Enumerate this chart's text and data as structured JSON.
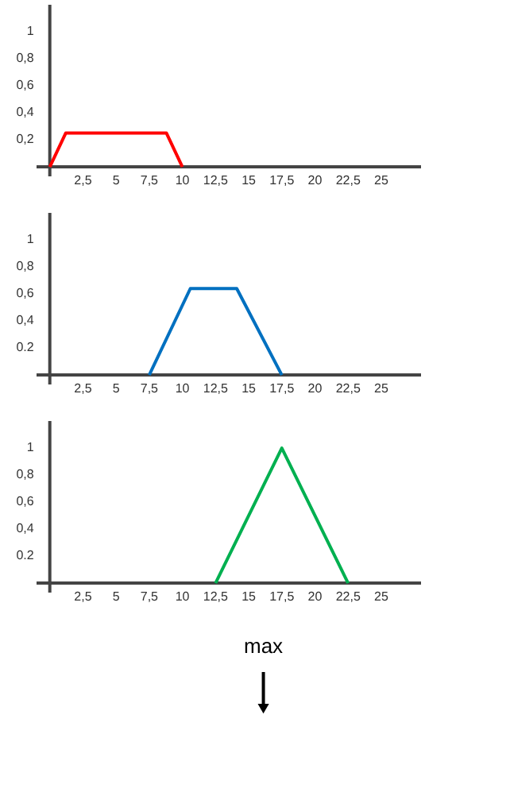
{
  "chart_data": [
    {
      "type": "line",
      "x": [
        0,
        1.2,
        8.8,
        10
      ],
      "series": [
        {
          "color": "#ff0000",
          "values": [
            0,
            0.25,
            0.25,
            0
          ]
        }
      ],
      "xlim": [
        -1,
        28
      ],
      "ylim": [
        -0.07,
        1.2
      ],
      "xticks": [
        {
          "value": 2.5,
          "label": "2,5"
        },
        5,
        {
          "value": 7.5,
          "label": "7,5"
        },
        10,
        {
          "value": 12.5,
          "label": "12,5"
        },
        15,
        {
          "value": 17.5,
          "label": "17,5"
        },
        20,
        {
          "value": 22.5,
          "label": "22,5"
        },
        25
      ],
      "yticks": [
        {
          "value": 0.2,
          "label": "0,2"
        },
        {
          "value": 0.4,
          "label": "0,4"
        },
        {
          "value": 0.6,
          "label": "0,6"
        },
        {
          "value": 0.8,
          "label": "0,8"
        },
        1
      ],
      "grid": false
    },
    {
      "type": "line",
      "x": [
        7.5,
        10.6,
        14.1,
        17.5
      ],
      "series": [
        {
          "color": "#0070c0",
          "values": [
            0,
            0.64,
            0.64,
            0
          ]
        }
      ],
      "xlim": [
        -1,
        28
      ],
      "ylim": [
        -0.07,
        1.2
      ],
      "xticks": [
        {
          "value": 2.5,
          "label": "2,5"
        },
        5,
        {
          "value": 7.5,
          "label": "7,5"
        },
        10,
        {
          "value": 12.5,
          "label": "12,5"
        },
        15,
        {
          "value": 17.5,
          "label": "17,5"
        },
        20,
        {
          "value": 22.5,
          "label": "22,5"
        },
        25
      ],
      "yticks": [
        {
          "value": 0.2,
          "label": "0.2"
        },
        {
          "value": 0.4,
          "label": "0,4"
        },
        {
          "value": 0.6,
          "label": "0,6"
        },
        {
          "value": 0.8,
          "label": "0,8"
        },
        1
      ],
      "grid": false
    },
    {
      "type": "line",
      "x": [
        12.5,
        17.5,
        22.5
      ],
      "series": [
        {
          "color": "#00b050",
          "values": [
            0,
            1,
            0
          ]
        }
      ],
      "xlim": [
        -1,
        28
      ],
      "ylim": [
        -0.07,
        1.2
      ],
      "xticks": [
        {
          "value": 2.5,
          "label": "2,5"
        },
        5,
        {
          "value": 7.5,
          "label": "7,5"
        },
        10,
        {
          "value": 12.5,
          "label": "12,5"
        },
        15,
        {
          "value": 17.5,
          "label": "17,5"
        },
        20,
        {
          "value": 22.5,
          "label": "22,5"
        },
        25
      ],
      "yticks": [
        {
          "value": 0.2,
          "label": "0.2"
        },
        {
          "value": 0.4,
          "label": "0,4"
        },
        {
          "value": 0.6,
          "label": "0,6"
        },
        {
          "value": 0.8,
          "label": "0,8"
        },
        1
      ],
      "grid": false,
      "annotations": [
        "max"
      ]
    }
  ]
}
